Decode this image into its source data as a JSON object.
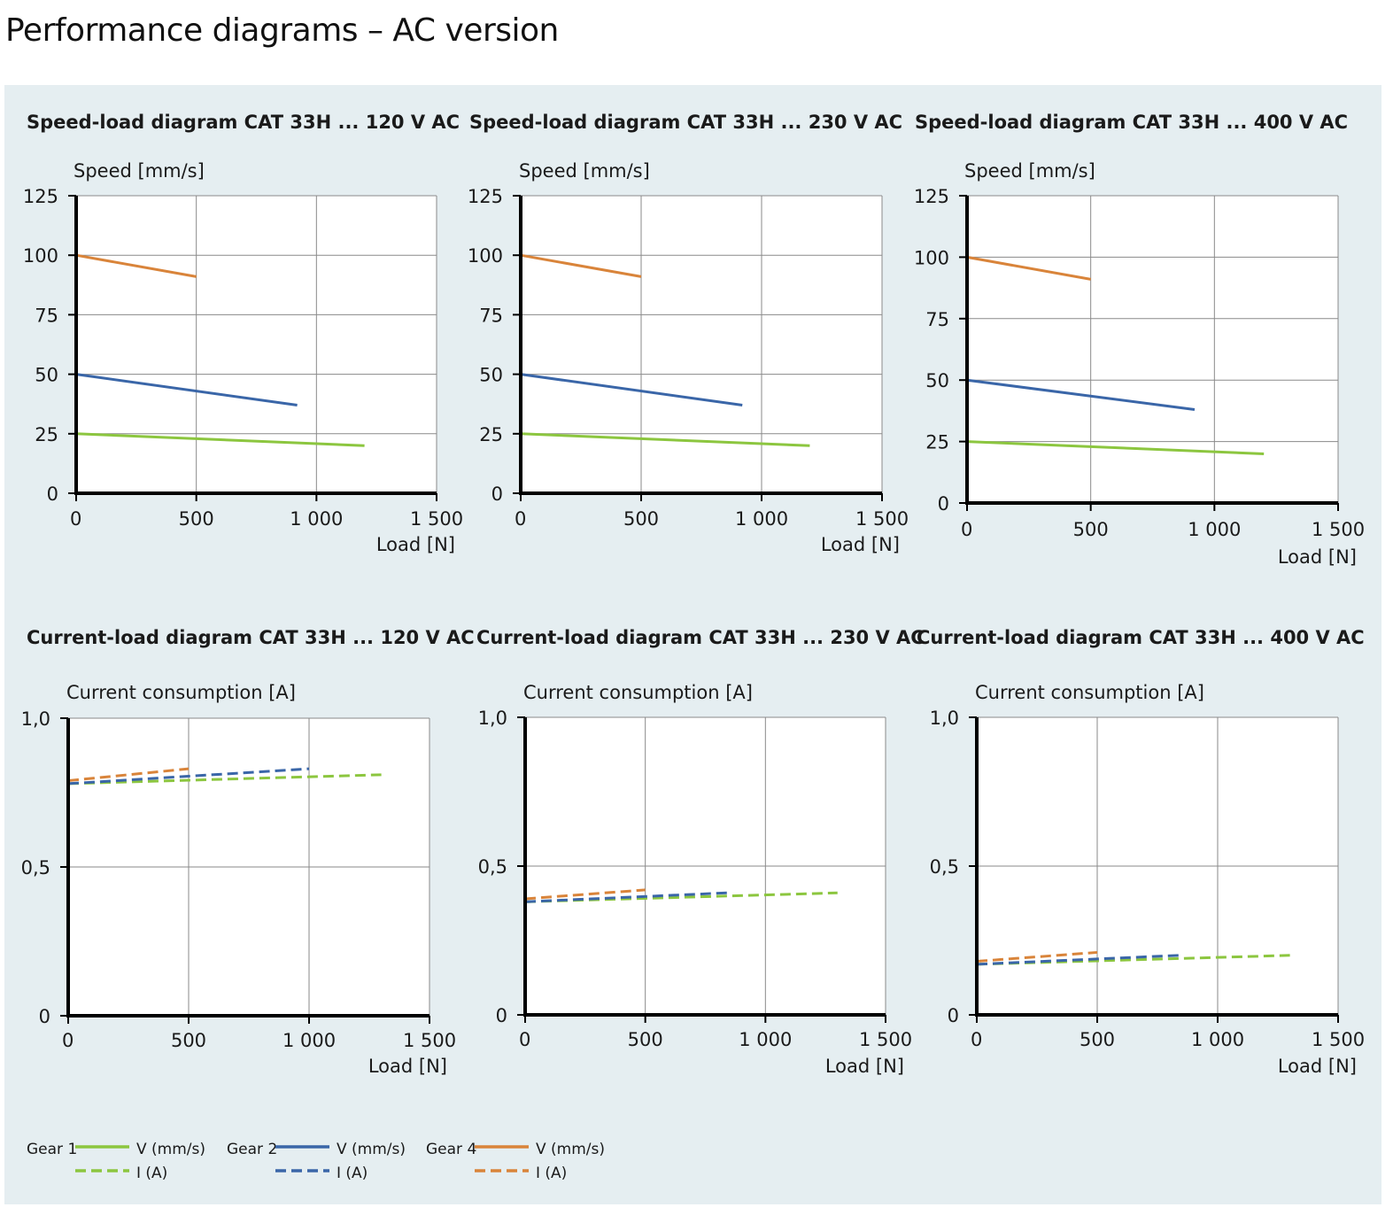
{
  "page_title": "Performance diagrams – AC version",
  "legend": [
    {
      "gear": "Gear 1",
      "color": "#8cc63f",
      "v_label": "V (mm/s)",
      "i_label": "I (A)"
    },
    {
      "gear": "Gear 2",
      "color": "#3a66a8",
      "v_label": "V (mm/s)",
      "i_label": "I (A)"
    },
    {
      "gear": "Gear 4",
      "color": "#d9843a",
      "v_label": "V (mm/s)",
      "i_label": "I (A)"
    }
  ],
  "chart_data": [
    {
      "type": "line",
      "title": "Speed-load diagram  CAT 33H ... 120 V AC",
      "ylabel": "Speed [mm/s]",
      "xlabel": "Load [N]",
      "xlim": [
        0,
        1500
      ],
      "ylim": [
        0,
        125
      ],
      "xticks": [
        0,
        500,
        1000,
        1500
      ],
      "xtick_labels": [
        "0",
        "500",
        "1 000",
        "1 500"
      ],
      "yticks": [
        0,
        25,
        50,
        75,
        100,
        125
      ],
      "ytick_labels": [
        "0",
        "25",
        "50",
        "75",
        "100",
        "125"
      ],
      "grid": true,
      "series": [
        {
          "name": "Gear 1 V (mm/s)",
          "color": "#8cc63f",
          "dashed": false,
          "x": [
            0,
            1200
          ],
          "y": [
            25,
            20
          ]
        },
        {
          "name": "Gear 2 V (mm/s)",
          "color": "#3a66a8",
          "dashed": false,
          "x": [
            0,
            920
          ],
          "y": [
            50,
            37
          ]
        },
        {
          "name": "Gear 4 V (mm/s)",
          "color": "#d9843a",
          "dashed": false,
          "x": [
            0,
            500
          ],
          "y": [
            100,
            91
          ]
        }
      ]
    },
    {
      "type": "line",
      "title": "Speed-load diagram CAT 33H ... 230 V AC",
      "ylabel": "Speed [mm/s]",
      "xlabel": "Load [N]",
      "xlim": [
        0,
        1500
      ],
      "ylim": [
        0,
        125
      ],
      "xticks": [
        0,
        500,
        1000,
        1500
      ],
      "xtick_labels": [
        "0",
        "500",
        "1 000",
        "1 500"
      ],
      "yticks": [
        0,
        25,
        50,
        75,
        100,
        125
      ],
      "ytick_labels": [
        "0",
        "25",
        "50",
        "75",
        "100",
        "125"
      ],
      "grid": true,
      "series": [
        {
          "name": "Gear 1 V (mm/s)",
          "color": "#8cc63f",
          "dashed": false,
          "x": [
            0,
            1200
          ],
          "y": [
            25,
            20
          ]
        },
        {
          "name": "Gear 2 V (mm/s)",
          "color": "#3a66a8",
          "dashed": false,
          "x": [
            0,
            920
          ],
          "y": [
            50,
            37
          ]
        },
        {
          "name": "Gear 4 V (mm/s)",
          "color": "#d9843a",
          "dashed": false,
          "x": [
            0,
            500
          ],
          "y": [
            100,
            91
          ]
        }
      ]
    },
    {
      "type": "line",
      "title": "Speed-load diagram CAT 33H ... 400 V AC",
      "ylabel": "Speed [mm/s]",
      "xlabel": "Load [N]",
      "xlim": [
        0,
        1500
      ],
      "ylim": [
        0,
        125
      ],
      "xticks": [
        0,
        500,
        1000,
        1500
      ],
      "xtick_labels": [
        "0",
        "500",
        "1 000",
        "1 500"
      ],
      "yticks": [
        0,
        25,
        50,
        75,
        100,
        125
      ],
      "ytick_labels": [
        "0",
        "25",
        "50",
        "75",
        "100",
        "125"
      ],
      "grid": true,
      "series": [
        {
          "name": "Gear 1 V (mm/s)",
          "color": "#8cc63f",
          "dashed": false,
          "x": [
            0,
            1200
          ],
          "y": [
            25,
            20
          ]
        },
        {
          "name": "Gear 2 V (mm/s)",
          "color": "#3a66a8",
          "dashed": false,
          "x": [
            0,
            920
          ],
          "y": [
            50,
            38
          ]
        },
        {
          "name": "Gear 4 V (mm/s)",
          "color": "#d9843a",
          "dashed": false,
          "x": [
            0,
            500
          ],
          "y": [
            100,
            91
          ]
        }
      ]
    },
    {
      "type": "line",
      "title": "Current-load diagram  CAT 33H ... 120 V AC",
      "ylabel": "Current consumption [A]",
      "xlabel": "Load [N]",
      "xlim": [
        0,
        1500
      ],
      "ylim": [
        0,
        1.0
      ],
      "xticks": [
        0,
        500,
        1000,
        1500
      ],
      "xtick_labels": [
        "0",
        "500",
        "1 000",
        "1 500"
      ],
      "yticks": [
        0,
        0.5,
        1.0
      ],
      "ytick_labels": [
        "0",
        "0,5",
        "1,0"
      ],
      "grid": true,
      "series": [
        {
          "name": "Gear 1 I (A)",
          "color": "#8cc63f",
          "dashed": true,
          "x": [
            0,
            1300
          ],
          "y": [
            0.78,
            0.81
          ]
        },
        {
          "name": "Gear 2 I (A)",
          "color": "#3a66a8",
          "dashed": true,
          "x": [
            0,
            1000
          ],
          "y": [
            0.78,
            0.83
          ]
        },
        {
          "name": "Gear 4 I (A)",
          "color": "#d9843a",
          "dashed": true,
          "x": [
            0,
            500
          ],
          "y": [
            0.79,
            0.83
          ]
        }
      ]
    },
    {
      "type": "line",
      "title": "Current-load diagram  CAT 33H ... 230 V AC",
      "ylabel": "Current consumption [A]",
      "xlabel": "Load [N]",
      "xlim": [
        0,
        1500
      ],
      "ylim": [
        0,
        1.0
      ],
      "xticks": [
        0,
        500,
        1000,
        1500
      ],
      "xtick_labels": [
        "0",
        "500",
        "1 000",
        "1 500"
      ],
      "yticks": [
        0,
        0.5,
        1.0
      ],
      "ytick_labels": [
        "0",
        "0,5",
        "1,0"
      ],
      "grid": true,
      "series": [
        {
          "name": "Gear 1 I (A)",
          "color": "#8cc63f",
          "dashed": true,
          "x": [
            0,
            1300
          ],
          "y": [
            0.38,
            0.41
          ]
        },
        {
          "name": "Gear 2 I (A)",
          "color": "#3a66a8",
          "dashed": true,
          "x": [
            0,
            840
          ],
          "y": [
            0.38,
            0.41
          ]
        },
        {
          "name": "Gear 4 I (A)",
          "color": "#d9843a",
          "dashed": true,
          "x": [
            0,
            500
          ],
          "y": [
            0.39,
            0.42
          ]
        }
      ]
    },
    {
      "type": "line",
      "title": "Current-load diagram  CAT 33H ... 400 V AC",
      "ylabel": "Current consumption [A]",
      "xlabel": "Load [N]",
      "xlim": [
        0,
        1500
      ],
      "ylim": [
        0,
        1.0
      ],
      "xticks": [
        0,
        500,
        1000,
        1500
      ],
      "xtick_labels": [
        "0",
        "500",
        "1 000",
        "1 500"
      ],
      "yticks": [
        0,
        0.5,
        1.0
      ],
      "ytick_labels": [
        "0",
        "0,5",
        "1,0"
      ],
      "grid": true,
      "series": [
        {
          "name": "Gear 1 I (A)",
          "color": "#8cc63f",
          "dashed": true,
          "x": [
            0,
            1300
          ],
          "y": [
            0.17,
            0.2
          ]
        },
        {
          "name": "Gear 2 I (A)",
          "color": "#3a66a8",
          "dashed": true,
          "x": [
            0,
            840
          ],
          "y": [
            0.17,
            0.2
          ]
        },
        {
          "name": "Gear 4 I (A)",
          "color": "#d9843a",
          "dashed": true,
          "x": [
            0,
            500
          ],
          "y": [
            0.18,
            0.21
          ]
        }
      ]
    }
  ]
}
